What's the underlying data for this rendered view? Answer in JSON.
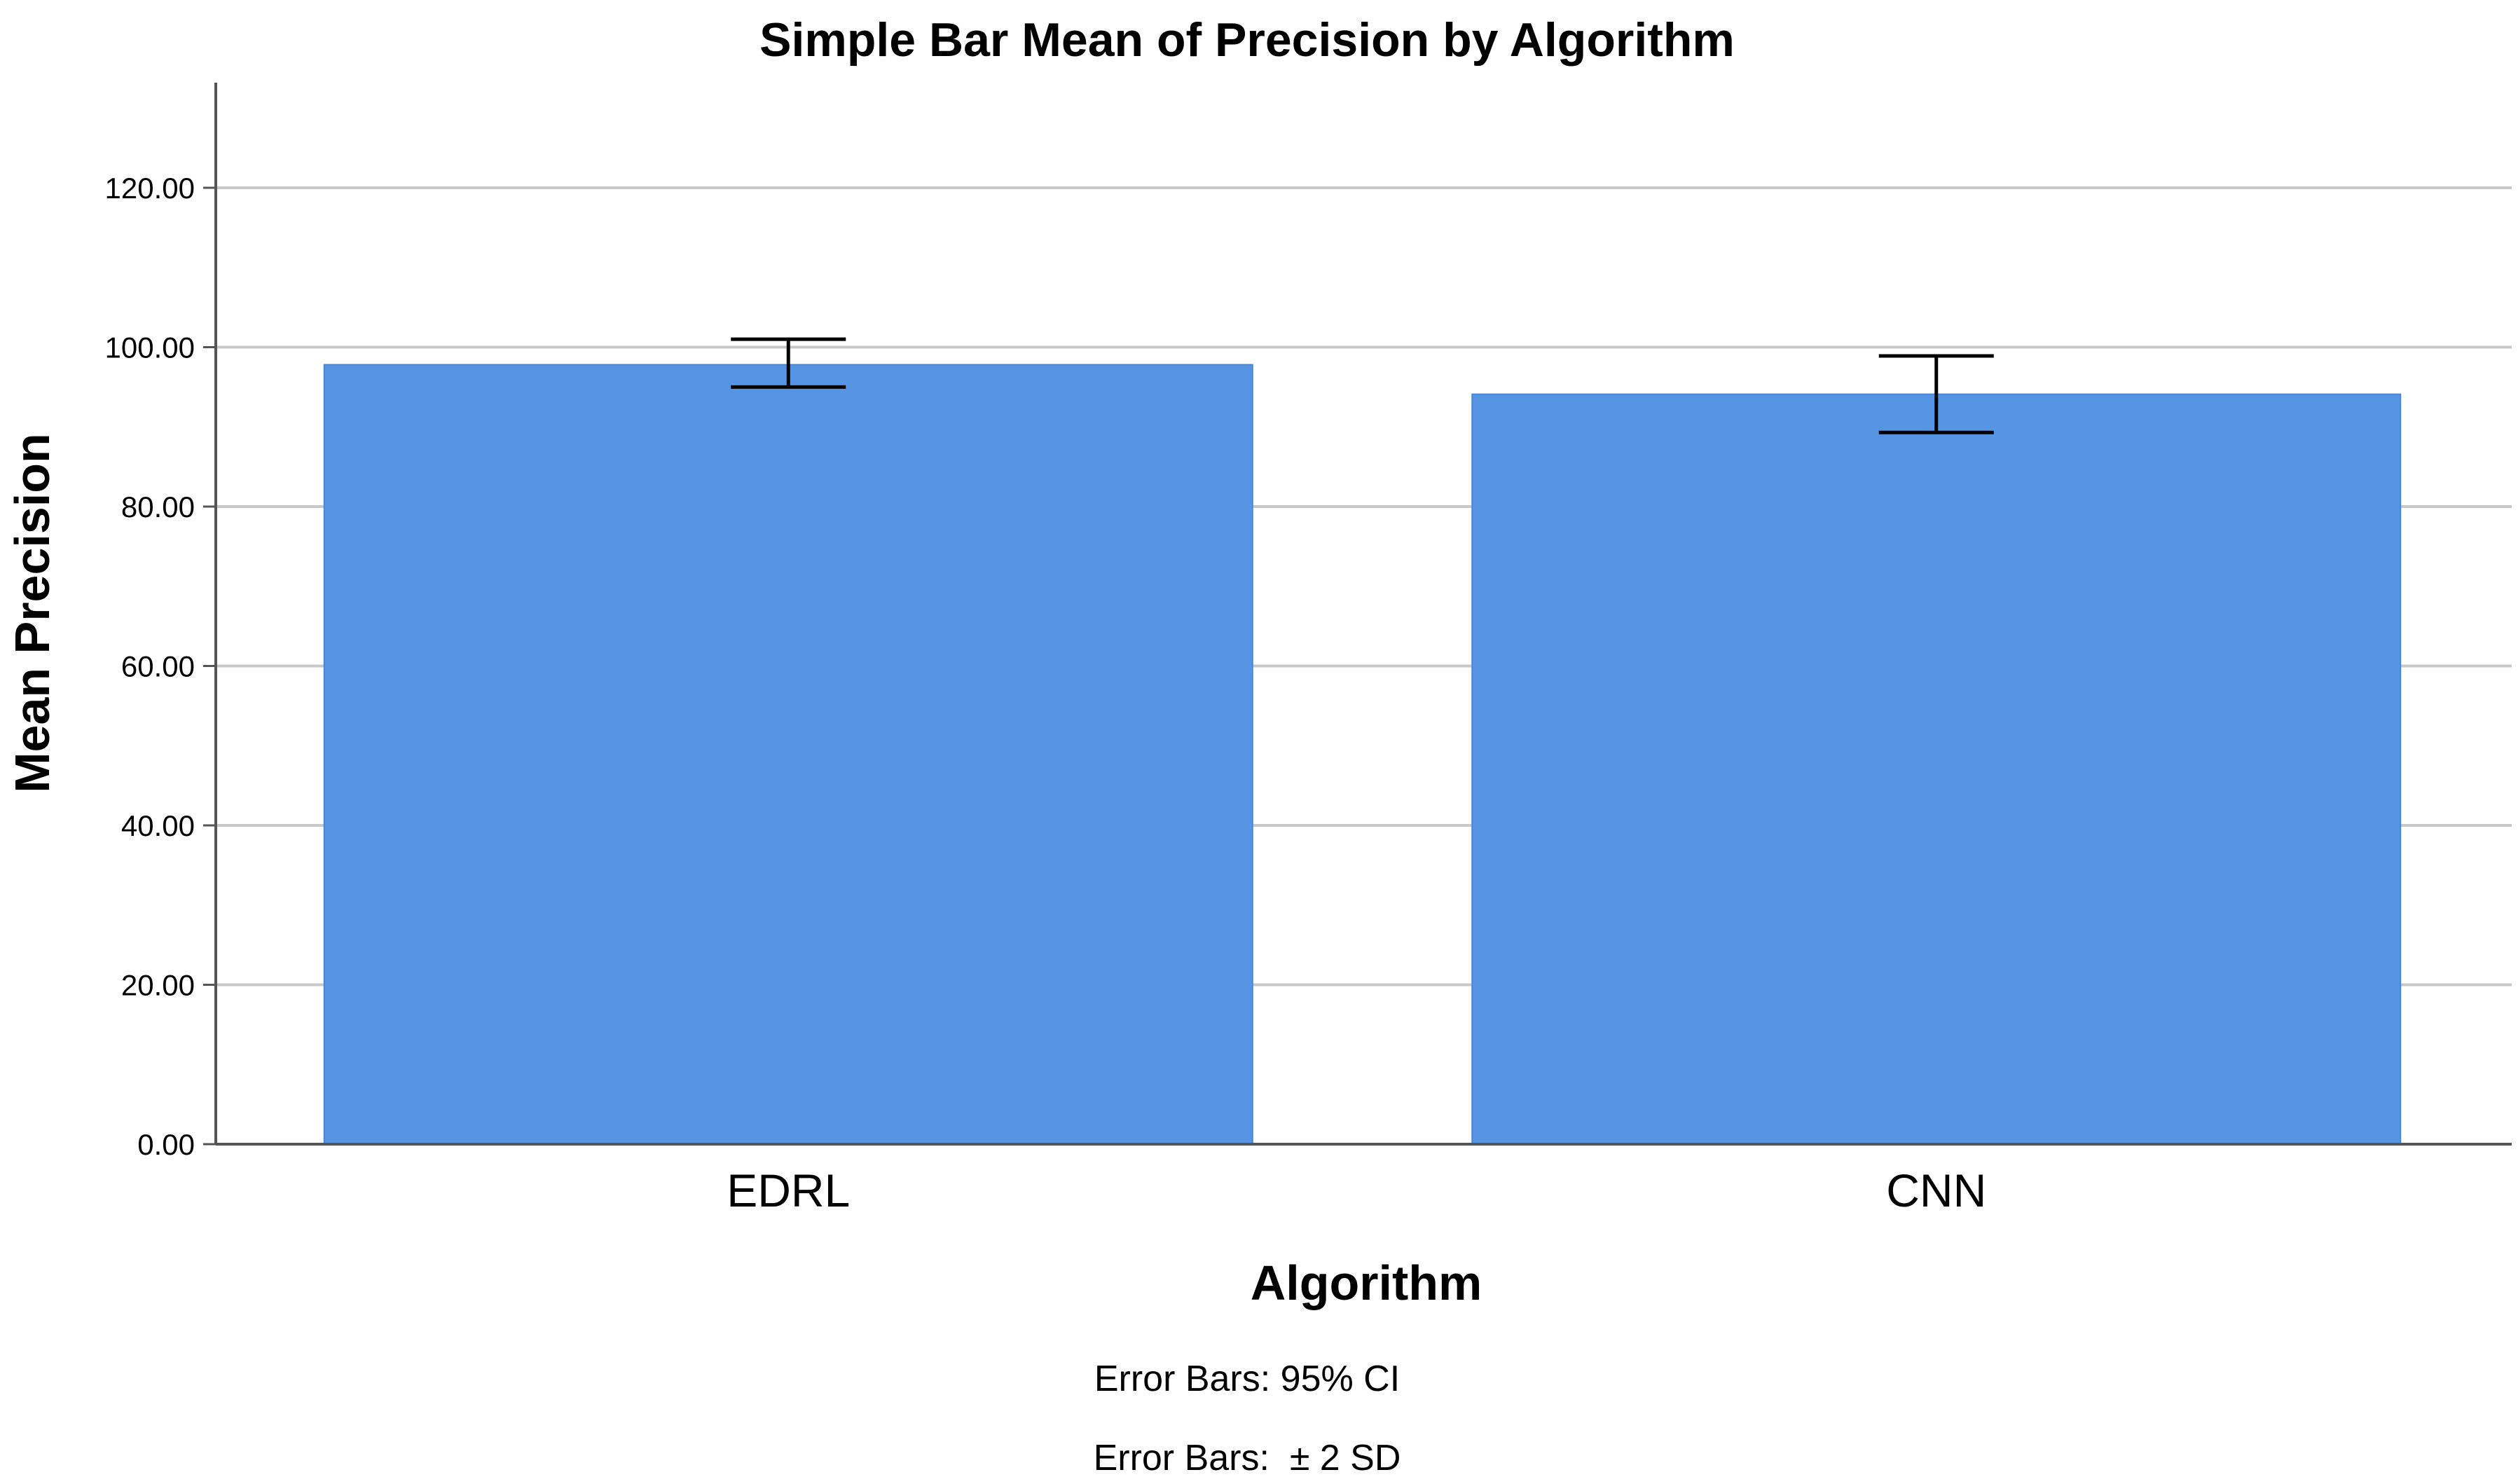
{
  "chart_data": {
    "type": "bar",
    "title": "Simple Bar Mean of Precision by Algorithm",
    "xlabel": "Algorithm",
    "ylabel": "Mean Precision",
    "categories": [
      "EDRL",
      "CNN"
    ],
    "values": [
      97.8,
      94.1
    ],
    "error_bars": [
      {
        "low": 95.0,
        "high": 101.0
      },
      {
        "low": 89.3,
        "high": 98.9
      }
    ],
    "ylim": [
      0,
      120
    ],
    "yticks": [
      0,
      20,
      40,
      60,
      80,
      100,
      120
    ],
    "ytick_labels": [
      "0.00",
      "20.00",
      "40.00",
      "60.00",
      "80.00",
      "100.00",
      "120.00"
    ],
    "grid": true,
    "bar_color": "#5595e3",
    "notes": [
      "Error Bars: 95% CI",
      "Error Bars:  ± 2 SD"
    ]
  }
}
